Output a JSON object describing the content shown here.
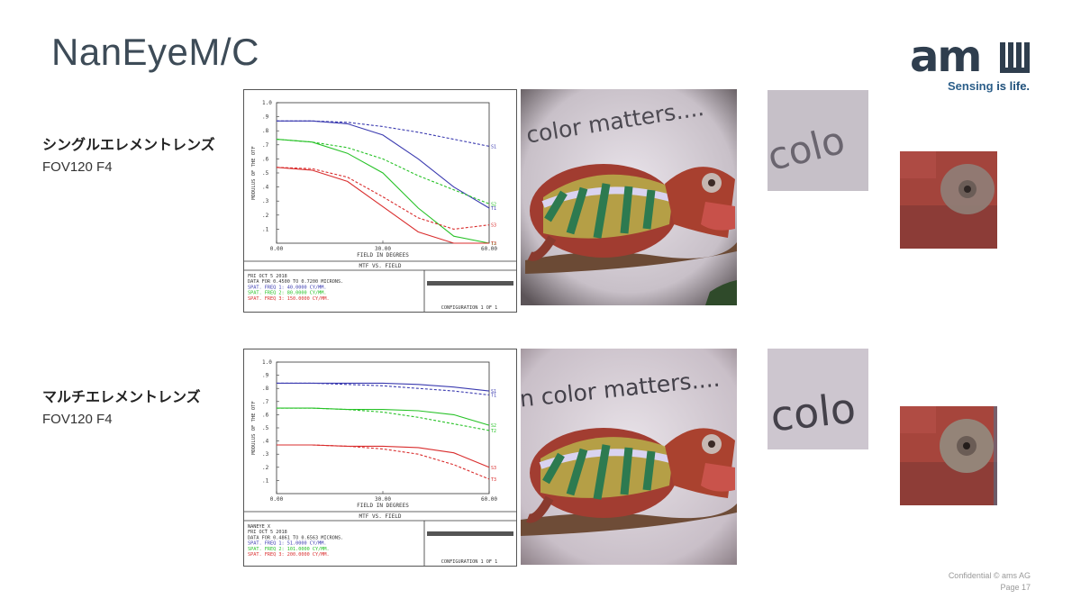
{
  "slide": {
    "title": "NanEyeM/C",
    "logo": {
      "mark": "am",
      "tagline_a": "Sensing ",
      "tagline_b": "is life."
    },
    "footer": {
      "line1": "Confidential © ams AG",
      "line2": "Page 17"
    }
  },
  "rows": [
    {
      "label_jp": "シングルエレメントレンズ",
      "label_sub": "FOV120 F4",
      "mtf": {
        "ylabel": "MODULUS OF THE OTF",
        "xlabel": "FIELD IN DEGREES",
        "chart_title": "MTF VS. FIELD",
        "info": [
          "FRI OCT 5 2018",
          "DATA FOR 0.4500 TO 0.7200 MICRONS.",
          "SPAT. FREQ 1:  40.0000 CY/MM.",
          "SPAT. FREQ 2:  80.0000 CY/MM.",
          "SPAT. FREQ 3: 150.0000 CY/MM."
        ],
        "config": "CONFIGURATION 1 OF 1",
        "photo_caption": "color matters...."
      },
      "crop_text": "colo"
    },
    {
      "label_jp": "マルチエレメントレンズ",
      "label_sub": "FOV120 F4",
      "mtf": {
        "ylabel": "MODULUS OF THE OTF",
        "xlabel": "FIELD IN DEGREES",
        "chart_title": "MTF VS. FIELD",
        "info": [
          "NANEYE_X",
          "FRI OCT 5 2018",
          "DATA FOR 0.4861 TO 0.6563 MICRONS.",
          "SPAT. FREQ 1:  51.0000 CY/MM.",
          "SPAT. FREQ 2: 101.0000 CY/MM.",
          "SPAT. FREQ 3: 200.0000 CY/MM."
        ],
        "config": "CONFIGURATION 1 OF 1",
        "photo_caption": "n color matters...."
      },
      "crop_text": "colo"
    }
  ],
  "chart_data": [
    {
      "type": "line",
      "xlabel": "FIELD IN DEGREES",
      "ylabel": "MODULUS OF THE OTF",
      "title": "MTF VS. FIELD",
      "xlim": [
        0,
        60
      ],
      "ylim": [
        0,
        1.0
      ],
      "x_ticks": [
        "0.00",
        "30.00",
        "60.00"
      ],
      "y_ticks": [
        ".1",
        ".2",
        ".3",
        ".4",
        ".5",
        ".6",
        ".7",
        ".8",
        ".9",
        "1.0"
      ],
      "series": [
        {
          "color": "#3b3bb0",
          "dash": false,
          "x": [
            0,
            10,
            20,
            30,
            40,
            50,
            60
          ],
          "y": [
            0.87,
            0.87,
            0.85,
            0.77,
            0.6,
            0.4,
            0.25
          ]
        },
        {
          "color": "#3b3bb0",
          "dash": true,
          "x": [
            0,
            10,
            20,
            30,
            40,
            50,
            60
          ],
          "y": [
            0.87,
            0.87,
            0.86,
            0.83,
            0.79,
            0.74,
            0.69
          ]
        },
        {
          "color": "#27c227",
          "dash": false,
          "x": [
            0,
            10,
            20,
            30,
            40,
            50,
            60
          ],
          "y": [
            0.74,
            0.72,
            0.64,
            0.5,
            0.25,
            0.05,
            0.0
          ]
        },
        {
          "color": "#27c227",
          "dash": true,
          "x": [
            0,
            10,
            20,
            30,
            40,
            50,
            60
          ],
          "y": [
            0.74,
            0.72,
            0.68,
            0.6,
            0.48,
            0.38,
            0.28
          ]
        },
        {
          "color": "#d92d2d",
          "dash": false,
          "x": [
            0,
            10,
            20,
            30,
            40,
            50,
            60
          ],
          "y": [
            0.54,
            0.52,
            0.44,
            0.26,
            0.08,
            0.0,
            0.0
          ]
        },
        {
          "color": "#d92d2d",
          "dash": true,
          "x": [
            0,
            10,
            20,
            30,
            40,
            50,
            60
          ],
          "y": [
            0.54,
            0.53,
            0.47,
            0.33,
            0.18,
            0.1,
            0.13
          ]
        }
      ],
      "end_labels": [
        "T1",
        "S1",
        "T2",
        "S2",
        "T3",
        "S3"
      ]
    },
    {
      "type": "line",
      "xlabel": "FIELD IN DEGREES",
      "ylabel": "MODULUS OF THE OTF",
      "title": "MTF VS. FIELD",
      "xlim": [
        0,
        60
      ],
      "ylim": [
        0,
        1.0
      ],
      "x_ticks": [
        "0.00",
        "30.00",
        "60.00"
      ],
      "y_ticks": [
        ".1",
        ".2",
        ".3",
        ".4",
        ".5",
        ".6",
        ".7",
        ".8",
        ".9",
        "1.0"
      ],
      "series": [
        {
          "color": "#3b3bb0",
          "dash": false,
          "x": [
            0,
            10,
            20,
            30,
            40,
            50,
            60
          ],
          "y": [
            0.84,
            0.84,
            0.84,
            0.84,
            0.83,
            0.81,
            0.78
          ]
        },
        {
          "color": "#3b3bb0",
          "dash": true,
          "x": [
            0,
            10,
            20,
            30,
            40,
            50,
            60
          ],
          "y": [
            0.84,
            0.84,
            0.83,
            0.82,
            0.8,
            0.78,
            0.75
          ]
        },
        {
          "color": "#27c227",
          "dash": false,
          "x": [
            0,
            10,
            20,
            30,
            40,
            50,
            60
          ],
          "y": [
            0.65,
            0.65,
            0.64,
            0.64,
            0.63,
            0.6,
            0.52
          ]
        },
        {
          "color": "#27c227",
          "dash": true,
          "x": [
            0,
            10,
            20,
            30,
            40,
            50,
            60
          ],
          "y": [
            0.65,
            0.65,
            0.64,
            0.62,
            0.58,
            0.53,
            0.48
          ]
        },
        {
          "color": "#d92d2d",
          "dash": false,
          "x": [
            0,
            10,
            20,
            30,
            40,
            50,
            60
          ],
          "y": [
            0.37,
            0.37,
            0.36,
            0.36,
            0.35,
            0.31,
            0.2
          ]
        },
        {
          "color": "#d92d2d",
          "dash": true,
          "x": [
            0,
            10,
            20,
            30,
            40,
            50,
            60
          ],
          "y": [
            0.37,
            0.37,
            0.36,
            0.34,
            0.3,
            0.22,
            0.11
          ]
        }
      ],
      "end_labels": [
        "S1",
        "T1",
        "S2",
        "T2",
        "S3",
        "T3"
      ]
    }
  ]
}
